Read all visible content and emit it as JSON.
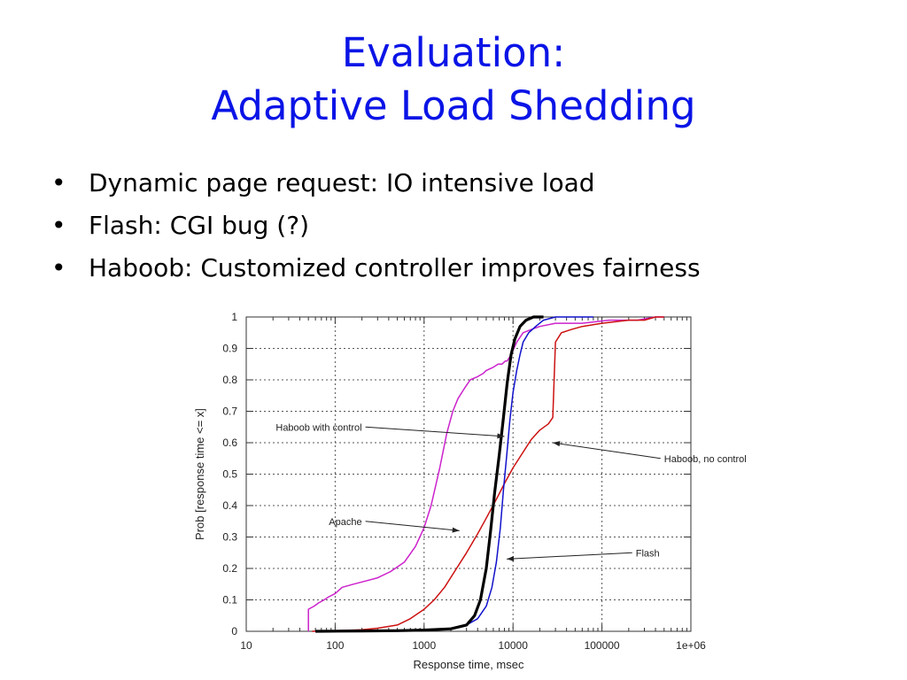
{
  "slide": {
    "title_line1": "Evaluation:",
    "title_line2": "Adaptive Load Shedding",
    "bullet_glyph": "•",
    "bullets": [
      "Dynamic page request: IO intensive load",
      "Flash: CGI bug (?)",
      "Haboob: Customized controller improves fairness"
    ],
    "title_color": "#0a14e6"
  },
  "chart_data": {
    "type": "line",
    "xscale": "log",
    "xlim": [
      10,
      1000000
    ],
    "ylim": [
      0,
      1
    ],
    "grid": true,
    "xlabel": "Response time, msec",
    "ylabel": "Prob [response time <= x]",
    "xticks": [
      10,
      100,
      1000,
      10000,
      100000,
      1000000
    ],
    "xtick_labels": [
      "10",
      "100",
      "1000",
      "10000",
      "100000",
      "1e+06"
    ],
    "yticks": [
      0,
      0.1,
      0.2,
      0.3,
      0.4,
      0.5,
      0.6,
      0.7,
      0.8,
      0.9,
      1
    ],
    "ytick_labels": [
      "0",
      "0.1",
      "0.2",
      "0.3",
      "0.4",
      "0.5",
      "0.6",
      "0.7",
      "0.8",
      "0.9",
      "1"
    ],
    "series": [
      {
        "name": "Apache",
        "color": "#cc22cc",
        "width": 1.5,
        "x": [
          50,
          50,
          58,
          65,
          75,
          85,
          100,
          120,
          160,
          220,
          300,
          420,
          600,
          800,
          1000,
          1200,
          1500,
          1800,
          2100,
          2400,
          2800,
          3300,
          4000,
          4600,
          5000,
          6000,
          6800,
          7500,
          8200,
          8600,
          9500,
          11000,
          13000,
          16000,
          20000,
          30000,
          60000,
          120000,
          250000,
          400000,
          500000
        ],
        "y": [
          0,
          0.07,
          0.08,
          0.09,
          0.1,
          0.11,
          0.12,
          0.14,
          0.15,
          0.16,
          0.17,
          0.19,
          0.22,
          0.27,
          0.33,
          0.4,
          0.52,
          0.63,
          0.7,
          0.74,
          0.77,
          0.8,
          0.81,
          0.82,
          0.83,
          0.84,
          0.85,
          0.85,
          0.86,
          0.86,
          0.88,
          0.92,
          0.95,
          0.96,
          0.97,
          0.98,
          0.98,
          0.99,
          0.99,
          1.0,
          1.0
        ]
      },
      {
        "name": "Haboob, no control",
        "color": "#cc1111",
        "width": 1.5,
        "x": [
          55,
          100,
          200,
          300,
          500,
          700,
          1000,
          1300,
          1700,
          2200,
          3000,
          4000,
          5000,
          6500,
          8000,
          10000,
          13000,
          16000,
          20000,
          25000,
          28000,
          29000,
          30000,
          35000,
          45000,
          60000,
          100000,
          200000,
          300000,
          400000,
          500000
        ],
        "y": [
          0,
          0.002,
          0.005,
          0.01,
          0.02,
          0.04,
          0.07,
          0.1,
          0.14,
          0.19,
          0.25,
          0.31,
          0.36,
          0.42,
          0.47,
          0.52,
          0.57,
          0.61,
          0.64,
          0.66,
          0.68,
          0.8,
          0.92,
          0.95,
          0.96,
          0.97,
          0.98,
          0.99,
          0.99,
          1.0,
          1.0
        ]
      },
      {
        "name": "Flash",
        "color": "#1111cc",
        "width": 1.5,
        "x": [
          60,
          200,
          500,
          1000,
          2000,
          3000,
          4000,
          5000,
          5800,
          6500,
          7200,
          7800,
          8500,
          9200,
          10000,
          11000,
          12000,
          13000,
          15000,
          18000,
          22000,
          30000,
          50000,
          80000
        ],
        "y": [
          0,
          0.001,
          0.002,
          0.004,
          0.01,
          0.02,
          0.04,
          0.08,
          0.14,
          0.22,
          0.33,
          0.45,
          0.56,
          0.67,
          0.76,
          0.83,
          0.88,
          0.92,
          0.95,
          0.97,
          0.99,
          1.0,
          1.0,
          1.0
        ]
      },
      {
        "name": "Haboob with control",
        "color": "#000000",
        "width": 3.2,
        "x": [
          60,
          200,
          500,
          1000,
          2000,
          3000,
          3700,
          4300,
          5000,
          5600,
          6200,
          7000,
          7800,
          8600,
          9500,
          10500,
          12000,
          14000,
          17000,
          20000,
          22000
        ],
        "y": [
          0,
          0.001,
          0.002,
          0.004,
          0.008,
          0.02,
          0.05,
          0.1,
          0.2,
          0.32,
          0.44,
          0.56,
          0.68,
          0.79,
          0.88,
          0.93,
          0.97,
          0.99,
          1.0,
          1.0,
          1.0
        ]
      }
    ],
    "annotations": [
      {
        "text": "Haboob with control",
        "x": 200,
        "y": 0.65,
        "arrow_to": [
          8000,
          0.62
        ],
        "text_anchor": "end"
      },
      {
        "text": "Haboob, no control",
        "x": 500000,
        "y": 0.55,
        "arrow_to": [
          28000,
          0.6
        ],
        "text_anchor": "start"
      },
      {
        "text": "Apache",
        "x": 200,
        "y": 0.35,
        "arrow_to": [
          2500,
          0.32
        ],
        "text_anchor": "end"
      },
      {
        "text": "Flash",
        "x": 240000,
        "y": 0.25,
        "arrow_to": [
          8500,
          0.23
        ],
        "text_anchor": "start"
      }
    ]
  }
}
